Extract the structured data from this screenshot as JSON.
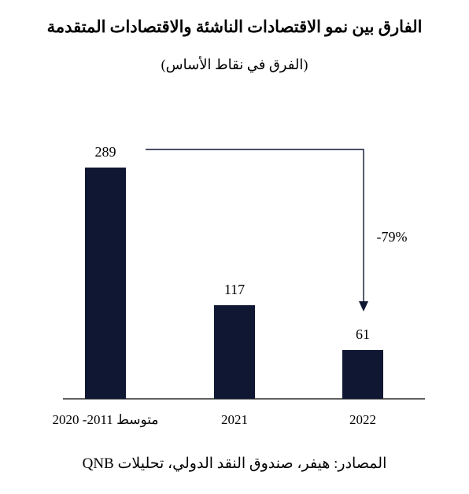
{
  "chart_data": {
    "type": "bar",
    "title": "الفارق بين نمو الاقتصادات الناشئة والاقتصادات المتقدمة",
    "subtitle": "(الفرق في نقاط الأساس)",
    "categories": [
      "متوسط 2011- 2020",
      "2021",
      "2022"
    ],
    "values": [
      289,
      117,
      61
    ],
    "data_labels": [
      "289",
      "117",
      "61"
    ],
    "annotation": "-79%",
    "source": "المصادر: هيفر، صندوق النقد الدولي، تحليلات QNB",
    "bar_color": "#0f1733",
    "ylim": [
      0,
      289
    ],
    "grid": false,
    "legend": "none"
  }
}
